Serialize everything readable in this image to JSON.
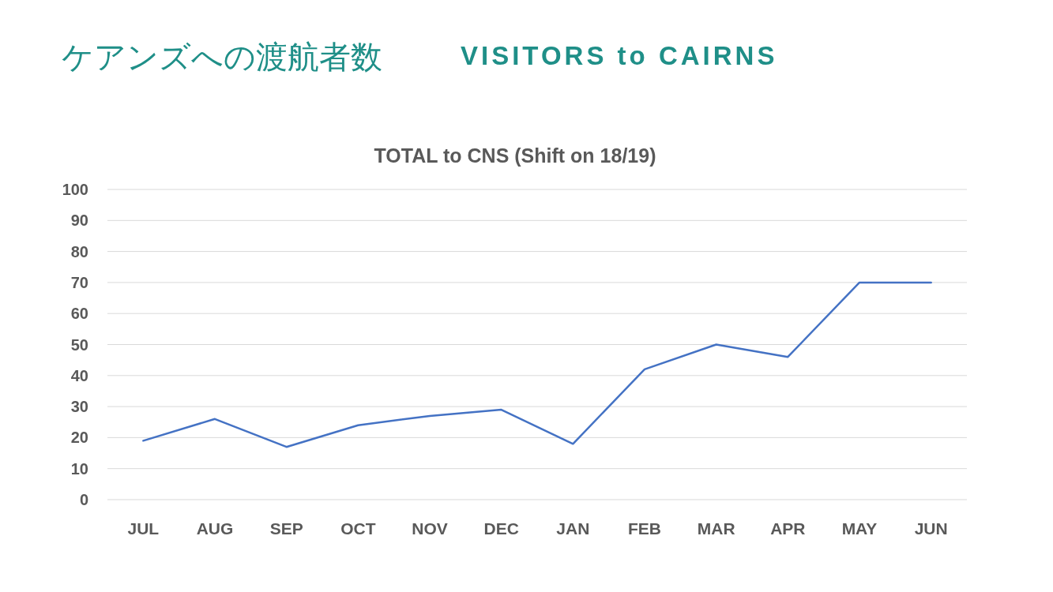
{
  "chart_data": {
    "type": "line",
    "title": "ケアンズへの渡航者数",
    "subtitle": "VISITORS to CAIRNS",
    "annotations": [
      "TOTAL to CNS (Shift on 18/19)"
    ],
    "categories": [
      "JUL",
      "AUG",
      "SEP",
      "OCT",
      "NOV",
      "DEC",
      "JAN",
      "FEB",
      "MAR",
      "APR",
      "MAY",
      "JUN"
    ],
    "series": [
      {
        "color": "#4472c4",
        "values": [
          19,
          26,
          17,
          24,
          27,
          29,
          18,
          42,
          50,
          46,
          70,
          70
        ]
      }
    ],
    "ylim": [
      0,
      100
    ],
    "yticks": [
      0,
      10,
      20,
      30,
      40,
      50,
      60,
      70,
      80,
      90,
      100
    ],
    "grid": "y"
  }
}
